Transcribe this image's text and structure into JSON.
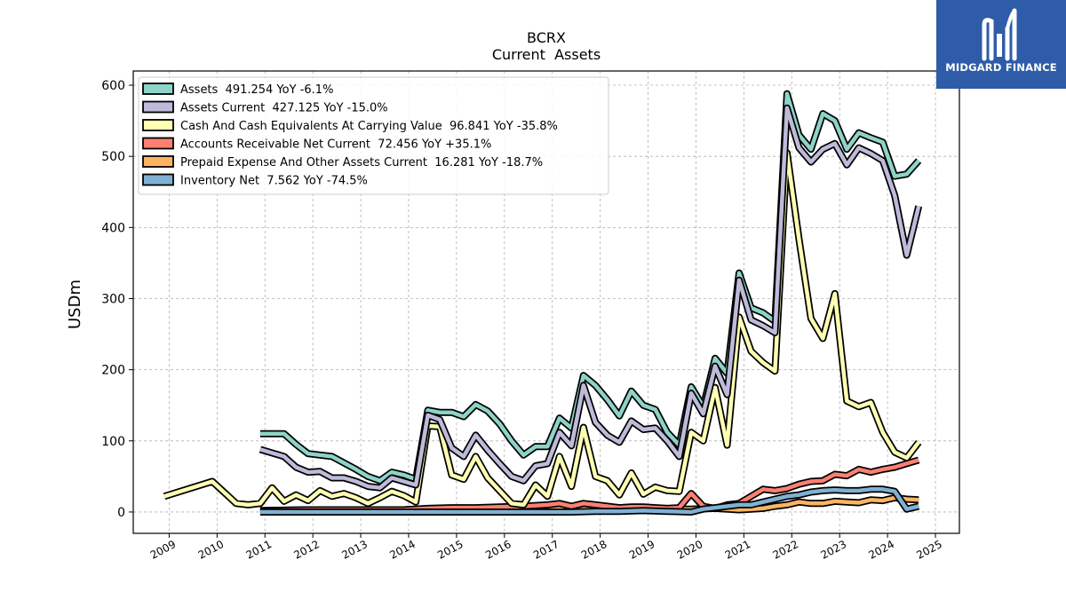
{
  "chart_data": {
    "type": "line",
    "title": "BCRX",
    "subtitle": "Current  Assets",
    "ylabel": "USDm",
    "xlabel": "",
    "xlim": [
      2008.25,
      2025.5
    ],
    "ylim": [
      -30,
      620
    ],
    "yticks": [
      0,
      100,
      200,
      300,
      400,
      500,
      600
    ],
    "xticks": [
      "2009",
      "2010",
      "2011",
      "2012",
      "2013",
      "2014",
      "2015",
      "2016",
      "2017",
      "2018",
      "2019",
      "2020",
      "2021",
      "2022",
      "2023",
      "2024",
      "2025"
    ],
    "grid": true,
    "legend_position": "top-left",
    "series": [
      {
        "name": "Assets  491.254 YoY -6.1%",
        "color": "#8dd3c7",
        "points": [
          [
            2010.9,
            110
          ],
          [
            2011.15,
            110
          ],
          [
            2011.4,
            110
          ],
          [
            2011.65,
            95
          ],
          [
            2011.9,
            82
          ],
          [
            2012.15,
            80
          ],
          [
            2012.4,
            78
          ],
          [
            2012.65,
            69
          ],
          [
            2012.9,
            60
          ],
          [
            2013.15,
            50
          ],
          [
            2013.4,
            44
          ],
          [
            2013.65,
            56
          ],
          [
            2013.9,
            52
          ],
          [
            2014.15,
            46
          ],
          [
            2014.4,
            143
          ],
          [
            2014.65,
            140
          ],
          [
            2014.9,
            140
          ],
          [
            2015.15,
            134
          ],
          [
            2015.4,
            151
          ],
          [
            2015.65,
            142
          ],
          [
            2015.9,
            124
          ],
          [
            2016.15,
            100
          ],
          [
            2016.4,
            80
          ],
          [
            2016.65,
            92
          ],
          [
            2016.9,
            92
          ],
          [
            2017.15,
            132
          ],
          [
            2017.4,
            118
          ],
          [
            2017.65,
            192
          ],
          [
            2017.9,
            178
          ],
          [
            2018.15,
            158
          ],
          [
            2018.4,
            135
          ],
          [
            2018.65,
            170
          ],
          [
            2018.9,
            150
          ],
          [
            2019.15,
            144
          ],
          [
            2019.4,
            112
          ],
          [
            2019.65,
            94
          ],
          [
            2019.9,
            176
          ],
          [
            2020.15,
            148
          ],
          [
            2020.4,
            216
          ],
          [
            2020.65,
            195
          ],
          [
            2020.9,
            336
          ],
          [
            2021.15,
            287
          ],
          [
            2021.4,
            280
          ],
          [
            2021.65,
            268
          ],
          [
            2021.9,
            588
          ],
          [
            2022.15,
            530
          ],
          [
            2022.4,
            510
          ],
          [
            2022.65,
            560
          ],
          [
            2022.9,
            550
          ],
          [
            2023.15,
            510
          ],
          [
            2023.4,
            533
          ],
          [
            2023.65,
            526
          ],
          [
            2023.9,
            520
          ],
          [
            2024.15,
            472
          ],
          [
            2024.4,
            475
          ],
          [
            2024.65,
            494
          ]
        ]
      },
      {
        "name": "Assets Current  427.125 YoY -15.0%",
        "color": "#bebada",
        "points": [
          [
            2010.9,
            88
          ],
          [
            2011.15,
            83
          ],
          [
            2011.4,
            78
          ],
          [
            2011.65,
            63
          ],
          [
            2011.9,
            56
          ],
          [
            2012.15,
            57
          ],
          [
            2012.4,
            48
          ],
          [
            2012.65,
            48
          ],
          [
            2012.9,
            43
          ],
          [
            2013.15,
            36
          ],
          [
            2013.4,
            34
          ],
          [
            2013.65,
            48
          ],
          [
            2013.9,
            43
          ],
          [
            2014.15,
            38
          ],
          [
            2014.4,
            136
          ],
          [
            2014.65,
            130
          ],
          [
            2014.9,
            90
          ],
          [
            2015.15,
            78
          ],
          [
            2015.4,
            108
          ],
          [
            2015.65,
            87
          ],
          [
            2015.9,
            68
          ],
          [
            2016.15,
            50
          ],
          [
            2016.4,
            44
          ],
          [
            2016.65,
            65
          ],
          [
            2016.9,
            68
          ],
          [
            2017.15,
            112
          ],
          [
            2017.4,
            93
          ],
          [
            2017.65,
            178
          ],
          [
            2017.9,
            126
          ],
          [
            2018.15,
            108
          ],
          [
            2018.4,
            98
          ],
          [
            2018.65,
            128
          ],
          [
            2018.9,
            116
          ],
          [
            2019.15,
            118
          ],
          [
            2019.4,
            100
          ],
          [
            2019.65,
            78
          ],
          [
            2019.9,
            167
          ],
          [
            2020.15,
            138
          ],
          [
            2020.4,
            205
          ],
          [
            2020.65,
            165
          ],
          [
            2020.9,
            326
          ],
          [
            2021.15,
            270
          ],
          [
            2021.4,
            262
          ],
          [
            2021.65,
            252
          ],
          [
            2021.9,
            568
          ],
          [
            2022.15,
            512
          ],
          [
            2022.4,
            492
          ],
          [
            2022.65,
            510
          ],
          [
            2022.9,
            518
          ],
          [
            2023.15,
            488
          ],
          [
            2023.4,
            512
          ],
          [
            2023.65,
            504
          ],
          [
            2023.9,
            494
          ],
          [
            2024.15,
            445
          ],
          [
            2024.4,
            361
          ],
          [
            2024.65,
            430
          ]
        ]
      },
      {
        "name": "Cash And Cash Equivalents At Carrying Value  96.841 YoY -35.8%",
        "color": "#ffffb3",
        "points": [
          [
            2008.9,
            22
          ],
          [
            2009.9,
            43
          ],
          [
            2010.4,
            12
          ],
          [
            2010.65,
            10
          ],
          [
            2010.9,
            12
          ],
          [
            2011.15,
            34
          ],
          [
            2011.4,
            15
          ],
          [
            2011.65,
            24
          ],
          [
            2011.9,
            16
          ],
          [
            2012.15,
            30
          ],
          [
            2012.4,
            22
          ],
          [
            2012.65,
            26
          ],
          [
            2012.9,
            20
          ],
          [
            2013.15,
            12
          ],
          [
            2013.4,
            20
          ],
          [
            2013.65,
            29
          ],
          [
            2013.9,
            23
          ],
          [
            2014.15,
            14
          ],
          [
            2014.4,
            121
          ],
          [
            2014.65,
            120
          ],
          [
            2014.9,
            52
          ],
          [
            2015.15,
            46
          ],
          [
            2015.4,
            78
          ],
          [
            2015.65,
            48
          ],
          [
            2015.9,
            30
          ],
          [
            2016.15,
            12
          ],
          [
            2016.4,
            10
          ],
          [
            2016.65,
            38
          ],
          [
            2016.9,
            22
          ],
          [
            2017.15,
            78
          ],
          [
            2017.4,
            36
          ],
          [
            2017.65,
            119
          ],
          [
            2017.9,
            50
          ],
          [
            2018.15,
            44
          ],
          [
            2018.4,
            24
          ],
          [
            2018.65,
            55
          ],
          [
            2018.9,
            25
          ],
          [
            2019.15,
            35
          ],
          [
            2019.4,
            30
          ],
          [
            2019.65,
            29
          ],
          [
            2019.9,
            112
          ],
          [
            2020.15,
            100
          ],
          [
            2020.4,
            175
          ],
          [
            2020.65,
            94
          ],
          [
            2020.9,
            274
          ],
          [
            2021.15,
            226
          ],
          [
            2021.4,
            210
          ],
          [
            2021.65,
            198
          ],
          [
            2021.9,
            505
          ],
          [
            2022.15,
            384
          ],
          [
            2022.4,
            272
          ],
          [
            2022.65,
            244
          ],
          [
            2022.9,
            307
          ],
          [
            2023.15,
            156
          ],
          [
            2023.4,
            148
          ],
          [
            2023.65,
            154
          ],
          [
            2023.9,
            112
          ],
          [
            2024.15,
            84
          ],
          [
            2024.4,
            76
          ],
          [
            2024.65,
            98
          ]
        ]
      },
      {
        "name": "Accounts Receivable Net Current  72.456 YoY +35.1%",
        "color": "#fb8072",
        "points": [
          [
            2010.9,
            2
          ],
          [
            2011.9,
            3
          ],
          [
            2012.9,
            3
          ],
          [
            2013.9,
            3
          ],
          [
            2014.4,
            5
          ],
          [
            2014.9,
            6
          ],
          [
            2015.4,
            6
          ],
          [
            2015.9,
            7
          ],
          [
            2016.4,
            8
          ],
          [
            2016.9,
            10
          ],
          [
            2017.15,
            12
          ],
          [
            2017.4,
            8
          ],
          [
            2017.65,
            12
          ],
          [
            2017.9,
            10
          ],
          [
            2018.15,
            8
          ],
          [
            2018.4,
            6
          ],
          [
            2018.65,
            7
          ],
          [
            2018.9,
            7
          ],
          [
            2019.15,
            6
          ],
          [
            2019.4,
            5
          ],
          [
            2019.65,
            6
          ],
          [
            2019.9,
            26
          ],
          [
            2020.15,
            8
          ],
          [
            2020.4,
            5
          ],
          [
            2020.65,
            10
          ],
          [
            2020.9,
            12
          ],
          [
            2021.15,
            22
          ],
          [
            2021.4,
            32
          ],
          [
            2021.65,
            30
          ],
          [
            2021.9,
            33
          ],
          [
            2022.15,
            39
          ],
          [
            2022.4,
            43
          ],
          [
            2022.65,
            44
          ],
          [
            2022.9,
            53
          ],
          [
            2023.15,
            51
          ],
          [
            2023.4,
            60
          ],
          [
            2023.65,
            56
          ],
          [
            2023.9,
            60
          ],
          [
            2024.15,
            63
          ],
          [
            2024.4,
            68
          ],
          [
            2024.65,
            73
          ]
        ]
      },
      {
        "name": "Prepaid Expense And Other Assets Current  16.281 YoY -18.7%",
        "color": "#fdb462",
        "points": [
          [
            2010.9,
            2
          ],
          [
            2011.9,
            3
          ],
          [
            2012.9,
            3
          ],
          [
            2013.9,
            3
          ],
          [
            2014.4,
            4
          ],
          [
            2014.9,
            5
          ],
          [
            2015.4,
            5
          ],
          [
            2015.9,
            5
          ],
          [
            2016.4,
            5
          ],
          [
            2016.9,
            6
          ],
          [
            2017.4,
            5
          ],
          [
            2017.9,
            5
          ],
          [
            2018.4,
            5
          ],
          [
            2018.9,
            5
          ],
          [
            2019.4,
            4
          ],
          [
            2019.9,
            4
          ],
          [
            2020.4,
            5
          ],
          [
            2020.9,
            3
          ],
          [
            2021.15,
            4
          ],
          [
            2021.4,
            5
          ],
          [
            2021.65,
            8
          ],
          [
            2021.9,
            10
          ],
          [
            2022.15,
            14
          ],
          [
            2022.4,
            12
          ],
          [
            2022.65,
            12
          ],
          [
            2022.9,
            15
          ],
          [
            2023.15,
            14
          ],
          [
            2023.4,
            13
          ],
          [
            2023.65,
            17
          ],
          [
            2023.9,
            16
          ],
          [
            2024.15,
            20
          ],
          [
            2024.4,
            18
          ],
          [
            2024.65,
            17
          ]
        ]
      },
      {
        "name": "Inventory Net  7.562 YoY -74.5%",
        "color": "#80b1d3",
        "points": [
          [
            2010.9,
            0
          ],
          [
            2011.9,
            0
          ],
          [
            2012.9,
            0
          ],
          [
            2013.9,
            0
          ],
          [
            2014.9,
            0
          ],
          [
            2015.9,
            0
          ],
          [
            2016.9,
            0
          ],
          [
            2017.4,
            0
          ],
          [
            2017.9,
            1
          ],
          [
            2018.4,
            1
          ],
          [
            2018.9,
            2
          ],
          [
            2019.4,
            1
          ],
          [
            2019.9,
            0
          ],
          [
            2020.15,
            4
          ],
          [
            2020.4,
            6
          ],
          [
            2020.65,
            8
          ],
          [
            2020.9,
            10
          ],
          [
            2021.15,
            10
          ],
          [
            2021.4,
            14
          ],
          [
            2021.65,
            18
          ],
          [
            2021.9,
            22
          ],
          [
            2022.15,
            24
          ],
          [
            2022.4,
            28
          ],
          [
            2022.65,
            30
          ],
          [
            2022.9,
            31
          ],
          [
            2023.15,
            30
          ],
          [
            2023.4,
            30
          ],
          [
            2023.65,
            32
          ],
          [
            2023.9,
            32
          ],
          [
            2024.15,
            29
          ],
          [
            2024.4,
            4
          ],
          [
            2024.65,
            8
          ]
        ]
      }
    ]
  },
  "brand": {
    "name": "MIDGARD FINANCE",
    "color": "#2e5ca8"
  }
}
